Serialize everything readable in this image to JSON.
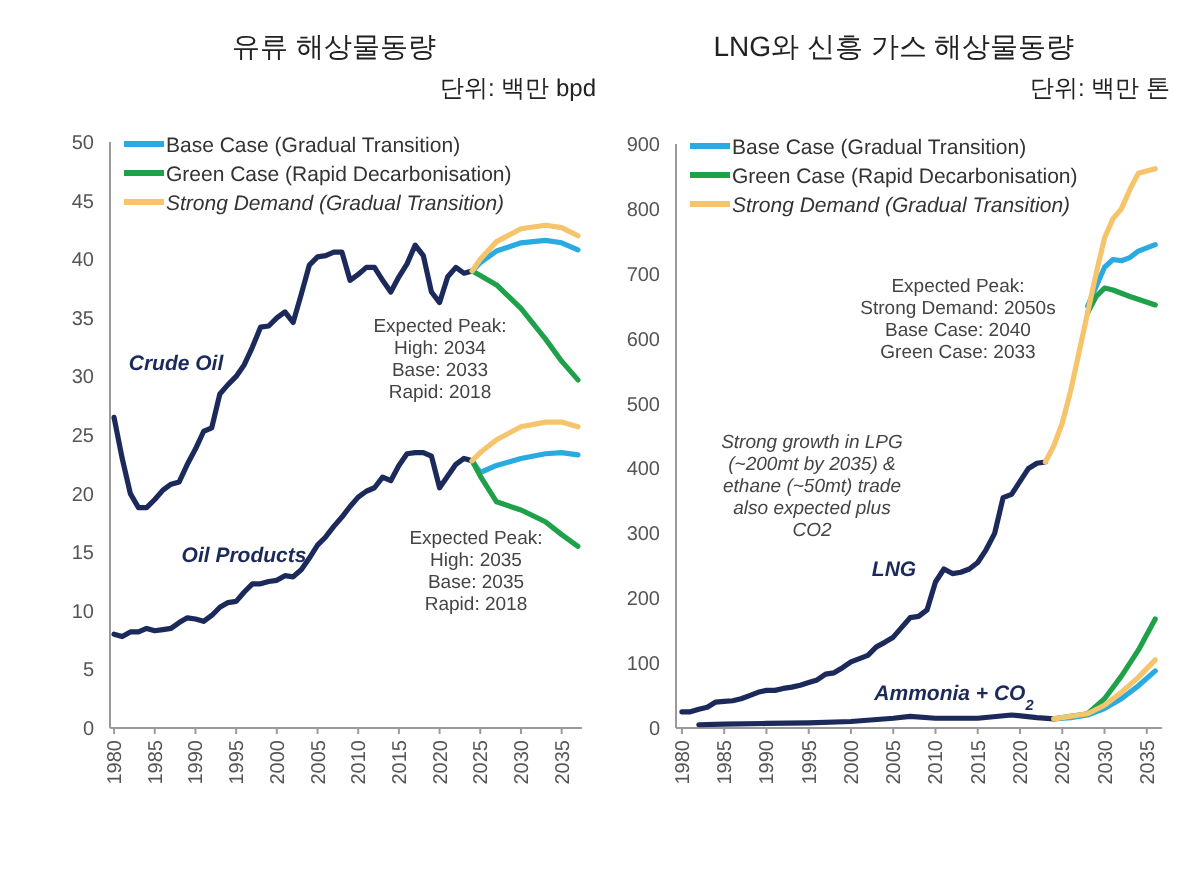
{
  "chart_data": [
    {
      "type": "line",
      "title": "유류 해상물동량",
      "subtitle": "단위: 백만 bpd",
      "xlim": [
        1979.5,
        2037.5
      ],
      "ylim": [
        0,
        50
      ],
      "xticks": [
        1980,
        1985,
        1990,
        1995,
        2000,
        2005,
        2010,
        2015,
        2020,
        2025,
        2030,
        2035
      ],
      "yticks": [
        0,
        5,
        10,
        15,
        20,
        25,
        30,
        35,
        40,
        45,
        50
      ],
      "legend": "top left",
      "grid": false,
      "marker": "none",
      "line_style": "solid",
      "annotations": [
        "Expected Peak:\nHigh: 2034\nBase: 2033\nRapid: 2018",
        "Expected Peak:\nHigh: 2035\nBase: 2035\nRapid: 2018"
      ],
      "series": [
        {
          "name": "Crude Oil",
          "color": "#1b2a5a",
          "x": [
            1980,
            1981,
            1982,
            1983,
            1984,
            1985,
            1986,
            1987,
            1988,
            1989,
            1990,
            1991,
            1992,
            1993,
            1994,
            1995,
            1996,
            1997,
            1998,
            1999,
            2000,
            2001,
            2002,
            2003,
            2004,
            2005,
            2006,
            2007,
            2008,
            2009,
            2010,
            2011,
            2012,
            2013,
            2014,
            2015,
            2016,
            2017,
            2018,
            2019,
            2020,
            2021,
            2022,
            2023,
            2024
          ],
          "values": [
            26.5,
            23,
            20,
            18.8,
            18.8,
            19.5,
            20.3,
            20.8,
            21,
            22.5,
            23.8,
            25.3,
            25.6,
            28.5,
            29.3,
            30,
            31,
            32.5,
            34.2,
            34.3,
            35,
            35.5,
            34.6,
            37,
            39.5,
            40.2,
            40.3,
            40.6,
            40.6,
            38.2,
            38.7,
            39.3,
            39.3,
            38.2,
            37.2,
            38.5,
            39.6,
            41.2,
            40.3,
            37.2,
            36.3,
            38.5,
            39.3,
            38.8,
            39
          ]
        },
        {
          "name": "Base Case (Gradual Transition)",
          "color": "#29abe2",
          "x": [
            2024,
            2025,
            2027,
            2030,
            2033,
            2035,
            2037
          ],
          "values": [
            39,
            39.7,
            40.7,
            41.4,
            41.6,
            41.4,
            40.8
          ]
        },
        {
          "name": "Green Case (Rapid Decarbonisation)",
          "color": "#1fa14a",
          "x": [
            2024,
            2025,
            2027,
            2030,
            2033,
            2035,
            2037
          ],
          "values": [
            39,
            38.6,
            37.8,
            35.8,
            33.2,
            31.3,
            29.7
          ]
        },
        {
          "name": "Strong Demand (Gradual Transition)",
          "color": "#f5c46b",
          "x": [
            2024,
            2025,
            2027,
            2030,
            2033,
            2035,
            2037
          ],
          "values": [
            39,
            40,
            41.5,
            42.6,
            42.9,
            42.7,
            42
          ]
        },
        {
          "name": "Oil Products",
          "color": "#1b2a5a",
          "x": [
            1980,
            1981,
            1982,
            1983,
            1984,
            1985,
            1986,
            1987,
            1988,
            1989,
            1990,
            1991,
            1992,
            1993,
            1994,
            1995,
            1996,
            1997,
            1998,
            1999,
            2000,
            2001,
            2002,
            2003,
            2004,
            2005,
            2006,
            2007,
            2008,
            2009,
            2010,
            2011,
            2012,
            2013,
            2014,
            2015,
            2016,
            2017,
            2018,
            2019,
            2020,
            2021,
            2022,
            2023,
            2024
          ],
          "values": [
            8,
            7.8,
            8.2,
            8.2,
            8.5,
            8.3,
            8.4,
            8.5,
            9,
            9.4,
            9.3,
            9.1,
            9.6,
            10.3,
            10.7,
            10.8,
            11.6,
            12.3,
            12.3,
            12.5,
            12.6,
            13,
            12.9,
            13.5,
            14.5,
            15.6,
            16.3,
            17.2,
            18,
            18.9,
            19.7,
            20.2,
            20.5,
            21.4,
            21.1,
            22.4,
            23.4,
            23.5,
            23.5,
            23.2,
            20.5,
            21.5,
            22.5,
            23,
            22.8
          ]
        },
        {
          "color": "#29abe2",
          "x": [
            2024,
            2025,
            2027,
            2030,
            2033,
            2035,
            2037
          ],
          "values": [
            22.8,
            21.8,
            22.4,
            23,
            23.4,
            23.5,
            23.3
          ]
        },
        {
          "color": "#1fa14a",
          "x": [
            2024,
            2025,
            2027,
            2030,
            2033,
            2035,
            2037
          ],
          "values": [
            22.8,
            21.5,
            19.3,
            18.6,
            17.6,
            16.5,
            15.5
          ]
        },
        {
          "color": "#f5c46b",
          "x": [
            2024,
            2025,
            2027,
            2030,
            2033,
            2035,
            2037
          ],
          "values": [
            22.8,
            23.5,
            24.6,
            25.7,
            26.1,
            26.1,
            25.7
          ]
        }
      ]
    },
    {
      "type": "line",
      "title": "LNG와 신흥 가스 해상물동량",
      "subtitle": "단위: 백만 톤",
      "xlim": [
        1979.3,
        2036.8
      ],
      "ylim": [
        0,
        900
      ],
      "xticks": [
        1980,
        1985,
        1990,
        1995,
        2000,
        2005,
        2010,
        2015,
        2020,
        2025,
        2030,
        2035
      ],
      "yticks": [
        0,
        100,
        200,
        300,
        400,
        500,
        600,
        700,
        800,
        900
      ],
      "legend": "top left",
      "grid": false,
      "marker": "none",
      "line_style": "solid",
      "annotations": [
        "Expected Peak:\nStrong Demand: 2050s\nBase Case: 2040\nGreen Case: 2033",
        "Strong growth in LPG\n(~200mt by 2035) &\nethane (~50mt) trade\nalso expected plus\nCO2"
      ],
      "series": [
        {
          "name": "LNG",
          "color": "#1b2a5a",
          "x": [
            1980,
            1981,
            1982,
            1983,
            1984,
            1985,
            1986,
            1987,
            1988,
            1989,
            1990,
            1991,
            1992,
            1993,
            1994,
            1995,
            1996,
            1997,
            1998,
            1999,
            2000,
            2001,
            2002,
            2003,
            2004,
            2005,
            2006,
            2007,
            2008,
            2009,
            2010,
            2011,
            2012,
            2013,
            2014,
            2015,
            2016,
            2017,
            2018,
            2019,
            2020,
            2021,
            2022,
            2023
          ],
          "values": [
            25,
            25,
            29,
            32,
            40,
            41,
            42,
            45,
            50,
            55,
            58,
            58,
            61,
            63,
            66,
            70,
            74,
            83,
            85,
            93,
            102,
            107,
            112,
            125,
            132,
            140,
            155,
            170,
            172,
            182,
            225,
            245,
            238,
            240,
            245,
            255,
            275,
            300,
            355,
            360,
            380,
            400,
            408,
            410
          ]
        },
        {
          "name": "Base Case (Gradual Transition)",
          "color": "#29abe2",
          "x": [
            2028,
            2029,
            2030,
            2031,
            2032,
            2033,
            2034,
            2036
          ],
          "values": [
            650,
            680,
            710,
            722,
            720,
            725,
            735,
            745
          ]
        },
        {
          "name": "Green Case (Rapid Decarbonisation)",
          "color": "#1fa14a",
          "x": [
            2028,
            2029,
            2030,
            2031,
            2032,
            2033,
            2036
          ],
          "values": [
            640,
            665,
            678,
            675,
            670,
            665,
            652
          ]
        },
        {
          "name": "Strong Demand (Gradual Transition)",
          "color": "#f5c46b",
          "x": [
            2023,
            2024,
            2025,
            2026,
            2027,
            2028,
            2029,
            2030,
            2031,
            2032,
            2033,
            2034,
            2036
          ],
          "values": [
            410,
            435,
            470,
            520,
            580,
            640,
            700,
            755,
            785,
            800,
            830,
            855,
            862
          ]
        },
        {
          "name": "Ammonia + CO$_{2}$",
          "color": "#1b2a5a",
          "x": [
            1982,
            1985,
            1990,
            1995,
            2000,
            2005,
            2007,
            2010,
            2015,
            2019,
            2022,
            2024
          ],
          "values": [
            5,
            6,
            7,
            8,
            10,
            15,
            18,
            15,
            15,
            20,
            16,
            14
          ]
        },
        {
          "color": "#29abe2",
          "x": [
            2024,
            2026,
            2028,
            2030,
            2032,
            2034,
            2036
          ],
          "values": [
            14,
            16,
            20,
            30,
            45,
            65,
            88
          ]
        },
        {
          "color": "#1fa14a",
          "x": [
            2024,
            2026,
            2028,
            2030,
            2032,
            2034,
            2036
          ],
          "values": [
            14,
            18,
            22,
            45,
            80,
            120,
            168
          ]
        },
        {
          "color": "#f5c46b",
          "x": [
            2024,
            2026,
            2028,
            2030,
            2032,
            2034,
            2036
          ],
          "values": [
            14,
            18,
            22,
            35,
            55,
            78,
            105
          ]
        }
      ]
    }
  ]
}
